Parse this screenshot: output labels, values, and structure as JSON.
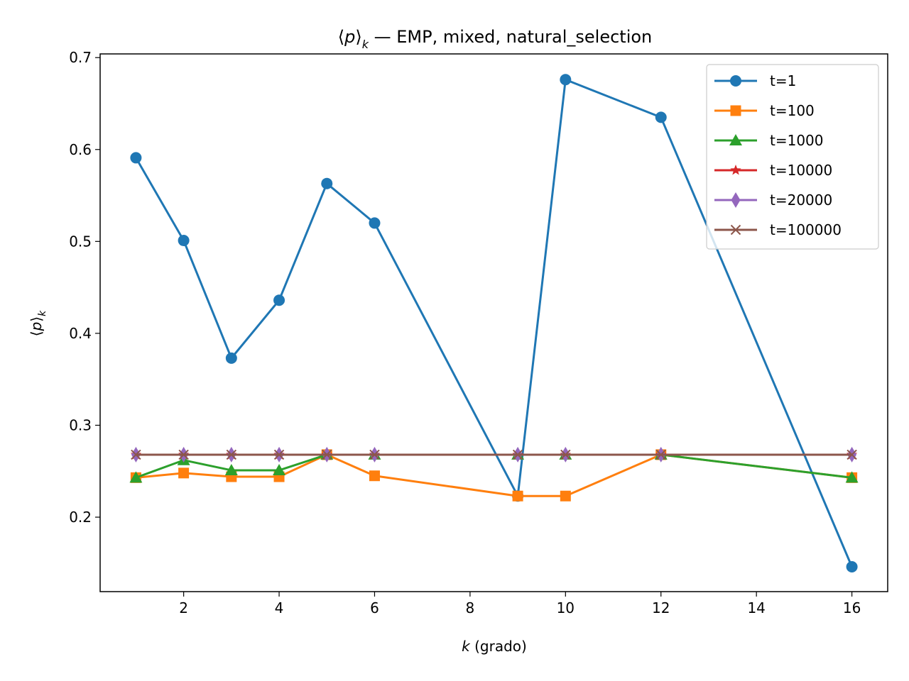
{
  "chart_data": {
    "type": "line",
    "title_parts": {
      "open": "⟨",
      "var": "p",
      "close": "⟩",
      "sub": "k",
      "rest": " — EMP, mixed, natural_selection"
    },
    "xlabel_parts": {
      "var": "k",
      "rest": " (grado)"
    },
    "ylabel_parts": {
      "open": "⟨",
      "var": "p",
      "close": "⟩",
      "sub": "k"
    },
    "x": [
      1,
      2,
      3,
      4,
      5,
      6,
      9,
      10,
      12,
      16
    ],
    "xlim": [
      0.25,
      16.75
    ],
    "ylim": [
      0.119,
      0.704
    ],
    "xticks": [
      2,
      4,
      6,
      8,
      10,
      12,
      14,
      16
    ],
    "xtick_labels": [
      "2",
      "4",
      "6",
      "8",
      "10",
      "12",
      "14",
      "16"
    ],
    "yticks": [
      0.2,
      0.3,
      0.4,
      0.5,
      0.6,
      0.7
    ],
    "ytick_labels": [
      "0.2",
      "0.3",
      "0.4",
      "0.5",
      "0.6",
      "0.7"
    ],
    "grid": false,
    "legend_position": "top-right",
    "series": [
      {
        "name": "t=1",
        "color": "#1f77b4",
        "marker": "circle",
        "values": [
          0.591,
          0.501,
          0.373,
          0.436,
          0.563,
          0.52,
          0.223,
          0.676,
          0.635,
          0.146
        ]
      },
      {
        "name": "t=100",
        "color": "#ff7f0e",
        "marker": "square",
        "values": [
          0.243,
          0.248,
          0.244,
          0.244,
          0.268,
          0.245,
          0.223,
          0.223,
          0.268,
          0.243
        ]
      },
      {
        "name": "t=1000",
        "color": "#2ca02c",
        "marker": "triangle",
        "values": [
          0.243,
          0.262,
          0.251,
          0.251,
          0.268,
          0.268,
          0.268,
          0.268,
          0.268,
          0.243
        ]
      },
      {
        "name": "t=10000",
        "color": "#d62728",
        "marker": "star",
        "values": [
          0.268,
          0.268,
          0.268,
          0.268,
          0.268,
          0.268,
          0.268,
          0.268,
          0.268,
          0.268
        ]
      },
      {
        "name": "t=20000",
        "color": "#9467bd",
        "marker": "thin_diamond",
        "values": [
          0.268,
          0.268,
          0.268,
          0.268,
          0.268,
          0.268,
          0.268,
          0.268,
          0.268,
          0.268
        ]
      },
      {
        "name": "t=100000",
        "color": "#8c564b",
        "marker": "x",
        "values": [
          0.268,
          0.268,
          0.268,
          0.268,
          0.268,
          0.268,
          0.268,
          0.268,
          0.268,
          0.268
        ]
      }
    ]
  }
}
